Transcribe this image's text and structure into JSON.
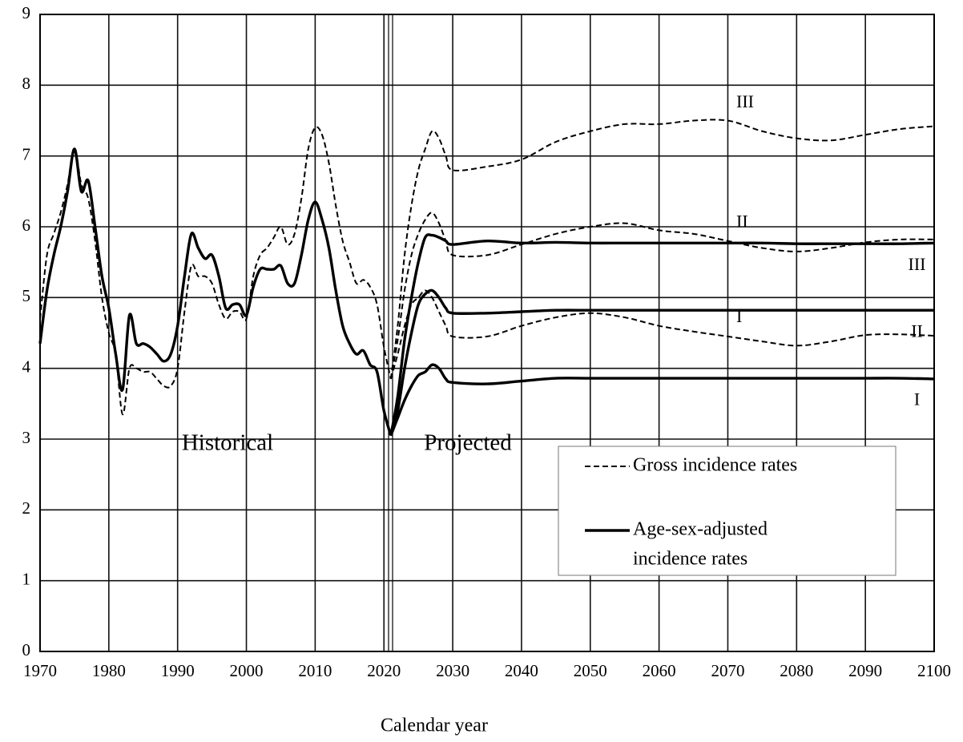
{
  "chart_data": {
    "type": "line",
    "x_label": "Calendar year",
    "annotations": [
      "Historical",
      "Projected"
    ],
    "xlim": [
      1970,
      2100
    ],
    "xticks": [
      1970,
      1980,
      1990,
      2000,
      2010,
      2020,
      2030,
      2040,
      2050,
      2060,
      2070,
      2080,
      2090,
      2100
    ],
    "ylim": [
      0,
      9
    ],
    "yticks": [
      0,
      1,
      2,
      3,
      4,
      5,
      6,
      7,
      8,
      9
    ],
    "grid": true,
    "legend_position": "lower right",
    "legend": [
      {
        "lines": [
          "Gross incidence rates"
        ],
        "style": "dashed"
      },
      {
        "lines": [
          "Age-sex-adjusted",
          "incidence rates"
        ],
        "style": "solid"
      }
    ],
    "series": [
      {
        "style": "dashed",
        "color": "#000000",
        "x": [
          1970,
          1971,
          1972,
          1973,
          1974,
          1975,
          1976,
          1977,
          1978,
          1979,
          1980,
          1981,
          1982,
          1983,
          1984,
          1985,
          1986,
          1987,
          1988,
          1989,
          1990,
          1991,
          1992,
          1993,
          1994,
          1995,
          1996,
          1997,
          1998,
          1999,
          2000,
          2001,
          2002,
          2003,
          2004,
          2005,
          2006,
          2007,
          2008,
          2009,
          2010,
          2011,
          2012,
          2013,
          2014,
          2015,
          2016,
          2017,
          2018,
          2019,
          2020,
          2021
        ],
        "values": [
          4.7,
          5.6,
          5.9,
          6.2,
          6.6,
          7.1,
          6.6,
          6.4,
          5.8,
          5.0,
          4.5,
          4.2,
          3.35,
          4.0,
          4.0,
          3.95,
          3.95,
          3.85,
          3.75,
          3.75,
          4.0,
          4.8,
          5.45,
          5.3,
          5.3,
          5.2,
          4.9,
          4.7,
          4.8,
          4.8,
          4.7,
          5.3,
          5.6,
          5.7,
          5.85,
          6.0,
          5.75,
          5.9,
          6.4,
          7.1,
          7.4,
          7.3,
          6.9,
          6.3,
          5.8,
          5.5,
          5.2,
          5.25,
          5.15,
          4.9,
          4.3,
          3.85
        ]
      },
      {
        "style": "solid",
        "color": "#000000",
        "x": [
          1970,
          1971,
          1972,
          1973,
          1974,
          1975,
          1976,
          1977,
          1978,
          1979,
          1980,
          1981,
          1982,
          1983,
          1984,
          1985,
          1986,
          1987,
          1988,
          1989,
          1990,
          1991,
          1992,
          1993,
          1994,
          1995,
          1996,
          1997,
          1998,
          1999,
          2000,
          2001,
          2002,
          2003,
          2004,
          2005,
          2006,
          2007,
          2008,
          2009,
          2010,
          2011,
          2012,
          2013,
          2014,
          2015,
          2016,
          2017,
          2018,
          2019,
          2020,
          2021
        ],
        "values": [
          4.35,
          5.1,
          5.6,
          6.0,
          6.5,
          7.1,
          6.5,
          6.65,
          6.0,
          5.3,
          4.85,
          4.2,
          3.7,
          4.75,
          4.35,
          4.35,
          4.3,
          4.2,
          4.1,
          4.2,
          4.6,
          5.3,
          5.9,
          5.7,
          5.55,
          5.6,
          5.3,
          4.85,
          4.9,
          4.9,
          4.75,
          5.15,
          5.4,
          5.4,
          5.4,
          5.45,
          5.2,
          5.2,
          5.6,
          6.1,
          6.35,
          6.1,
          5.7,
          5.1,
          4.6,
          4.35,
          4.2,
          4.25,
          4.05,
          3.95,
          3.4,
          3.05
        ]
      },
      {
        "style": "dashed",
        "color": "#000000",
        "label": "III",
        "x": [
          2021,
          2022,
          2023,
          2024,
          2025,
          2026,
          2027,
          2028,
          2029,
          2030,
          2035,
          2040,
          2045,
          2050,
          2055,
          2060,
          2065,
          2070,
          2075,
          2080,
          2085,
          2090,
          2095,
          2100
        ],
        "values": [
          3.85,
          4.6,
          5.6,
          6.3,
          6.8,
          7.1,
          7.35,
          7.25,
          7.0,
          6.8,
          6.85,
          6.95,
          7.2,
          7.35,
          7.45,
          7.45,
          7.5,
          7.5,
          7.35,
          7.25,
          7.22,
          7.3,
          7.38,
          7.42
        ]
      },
      {
        "style": "dashed",
        "color": "#000000",
        "label": "II",
        "x": [
          2021,
          2022,
          2023,
          2024,
          2025,
          2026,
          2027,
          2028,
          2029,
          2030,
          2035,
          2040,
          2045,
          2050,
          2055,
          2060,
          2065,
          2070,
          2075,
          2080,
          2085,
          2090,
          2095,
          2100
        ],
        "values": [
          3.85,
          4.4,
          5.1,
          5.6,
          5.9,
          6.1,
          6.2,
          6.05,
          5.8,
          5.6,
          5.6,
          5.75,
          5.9,
          6.0,
          6.05,
          5.95,
          5.9,
          5.8,
          5.7,
          5.65,
          5.7,
          5.78,
          5.82,
          5.82
        ]
      },
      {
        "style": "dashed",
        "color": "#000000",
        "label": "I",
        "x": [
          2021,
          2022,
          2023,
          2024,
          2025,
          2026,
          2027,
          2028,
          2029,
          2030,
          2035,
          2040,
          2045,
          2050,
          2055,
          2060,
          2065,
          2070,
          2075,
          2080,
          2085,
          2090,
          2095,
          2100
        ],
        "values": [
          3.85,
          4.2,
          4.6,
          4.9,
          5.0,
          5.1,
          5.0,
          4.8,
          4.6,
          4.45,
          4.45,
          4.6,
          4.72,
          4.78,
          4.72,
          4.6,
          4.52,
          4.45,
          4.38,
          4.32,
          4.38,
          4.47,
          4.48,
          4.46
        ]
      },
      {
        "style": "solid",
        "color": "#000000",
        "label": "III",
        "x": [
          2021,
          2022,
          2023,
          2024,
          2025,
          2026,
          2027,
          2028,
          2029,
          2030,
          2035,
          2040,
          2045,
          2050,
          2055,
          2060,
          2065,
          2070,
          2075,
          2080,
          2085,
          2090,
          2095,
          2100
        ],
        "values": [
          3.05,
          3.6,
          4.4,
          5.0,
          5.5,
          5.85,
          5.88,
          5.85,
          5.8,
          5.75,
          5.8,
          5.77,
          5.78,
          5.77,
          5.77,
          5.77,
          5.77,
          5.77,
          5.77,
          5.76,
          5.76,
          5.76,
          5.76,
          5.77
        ]
      },
      {
        "style": "solid",
        "color": "#000000",
        "label": "II",
        "x": [
          2021,
          2022,
          2023,
          2024,
          2025,
          2026,
          2027,
          2028,
          2029,
          2030,
          2035,
          2040,
          2045,
          2050,
          2055,
          2060,
          2065,
          2070,
          2075,
          2080,
          2085,
          2090,
          2095,
          2100
        ],
        "values": [
          3.05,
          3.4,
          4.0,
          4.5,
          4.9,
          5.05,
          5.1,
          5.0,
          4.85,
          4.78,
          4.78,
          4.8,
          4.82,
          4.82,
          4.82,
          4.82,
          4.82,
          4.82,
          4.82,
          4.82,
          4.82,
          4.82,
          4.82,
          4.82
        ]
      },
      {
        "style": "solid",
        "color": "#000000",
        "label": "I",
        "x": [
          2021,
          2022,
          2023,
          2024,
          2025,
          2026,
          2027,
          2028,
          2029,
          2030,
          2035,
          2040,
          2045,
          2050,
          2055,
          2060,
          2065,
          2070,
          2075,
          2080,
          2085,
          2090,
          2095,
          2100
        ],
        "values": [
          3.05,
          3.3,
          3.55,
          3.75,
          3.9,
          3.95,
          4.05,
          4.0,
          3.85,
          3.8,
          3.78,
          3.82,
          3.86,
          3.86,
          3.86,
          3.86,
          3.86,
          3.86,
          3.86,
          3.86,
          3.86,
          3.86,
          3.86,
          3.85
        ]
      }
    ]
  }
}
